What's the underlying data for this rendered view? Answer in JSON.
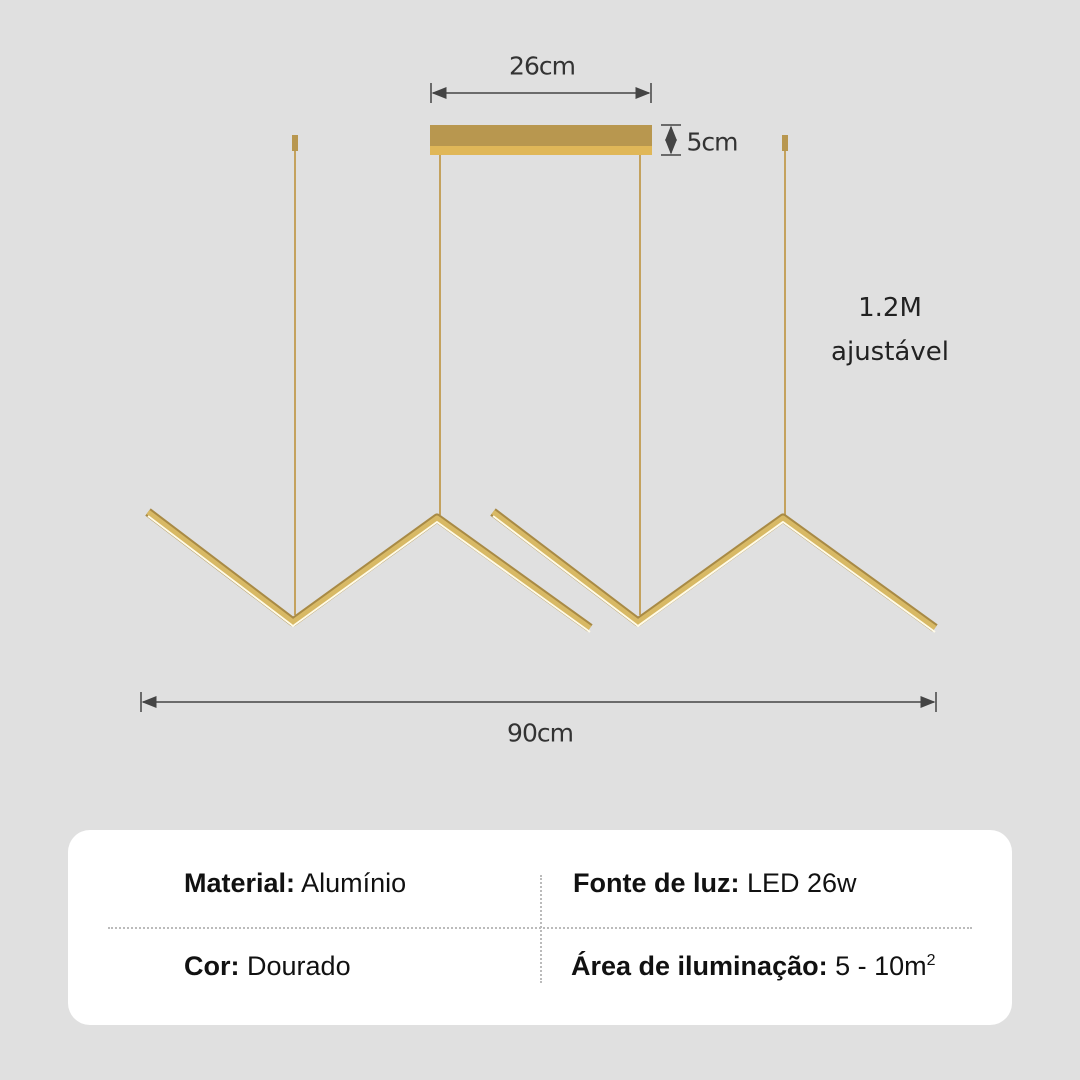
{
  "dimensions": {
    "canopy_width": "26cm",
    "canopy_height": "5cm",
    "total_width": "90cm",
    "cable_length": "1.2M",
    "cable_note": "ajustável"
  },
  "colors": {
    "background": "#e0e0e0",
    "gold": "#c9a85a",
    "card": "#ffffff"
  },
  "specs": {
    "material": {
      "label": "Material:",
      "value": "Alumínio"
    },
    "light_source": {
      "label": "Fonte de luz:",
      "value": "LED 26w"
    },
    "color": {
      "label": "Cor:",
      "value": "Dourado"
    },
    "area": {
      "label": "Área de iluminação:",
      "value": "5 - 10m",
      "sup": "2"
    }
  }
}
